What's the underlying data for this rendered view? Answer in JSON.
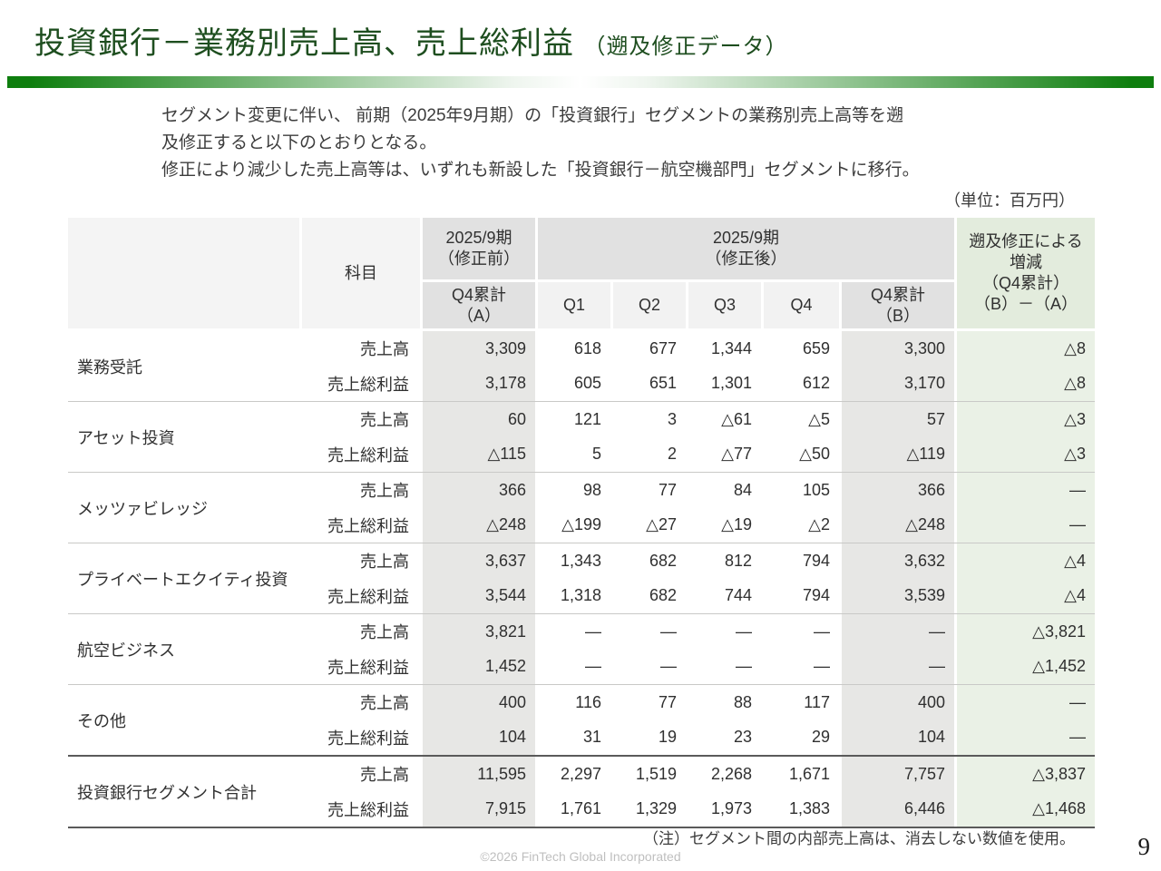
{
  "title": {
    "main": "投資銀行－業務別売上高、売上総利益",
    "sub": "（遡及修正データ）"
  },
  "intro": {
    "line1": "セグメント変更に伴い、 前期（2025年9月期）の「投資銀行」セグメントの業務別売上高等を遡",
    "line2": "及修正すると以下のとおりとなる。",
    "line3": "修正により減少した売上高等は、いずれも新設した「投資銀行－航空機部門」セグメントに移行。"
  },
  "unit_label": "（単位：百万円）",
  "table": {
    "header": {
      "item_col": "科目",
      "before": {
        "line1": "2025/9期",
        "line2": "（修正前）"
      },
      "after": {
        "line1": "2025/9期",
        "line2": "（修正後）"
      },
      "col_a": {
        "line1": "Q4累計",
        "line2": "（A）"
      },
      "q1": "Q1",
      "q2": "Q2",
      "q3": "Q3",
      "q4": "Q4",
      "col_b": {
        "line1": "Q4累計",
        "line2": "（B）"
      },
      "diff": {
        "line1": "遡及修正による",
        "line2": "増減",
        "line3": "（Q4累計）",
        "line4": "（B）－（A）"
      }
    },
    "groups": [
      {
        "name": "業務受託",
        "total": false,
        "rows": [
          {
            "item": "売上高",
            "values": [
              "3,309",
              "618",
              "677",
              "1,344",
              "659",
              "3,300",
              "△8"
            ]
          },
          {
            "item": "売上総利益",
            "values": [
              "3,178",
              "605",
              "651",
              "1,301",
              "612",
              "3,170",
              "△8"
            ]
          }
        ]
      },
      {
        "name": "アセット投資",
        "total": false,
        "rows": [
          {
            "item": "売上高",
            "values": [
              "60",
              "121",
              "3",
              "△61",
              "△5",
              "57",
              "△3"
            ]
          },
          {
            "item": "売上総利益",
            "values": [
              "△115",
              "5",
              "2",
              "△77",
              "△50",
              "△119",
              "△3"
            ]
          }
        ]
      },
      {
        "name": "メッツァビレッジ",
        "total": false,
        "rows": [
          {
            "item": "売上高",
            "values": [
              "366",
              "98",
              "77",
              "84",
              "105",
              "366",
              "―"
            ]
          },
          {
            "item": "売上総利益",
            "values": [
              "△248",
              "△199",
              "△27",
              "△19",
              "△2",
              "△248",
              "―"
            ]
          }
        ]
      },
      {
        "name": "プライベートエクイティ投資",
        "total": false,
        "rows": [
          {
            "item": "売上高",
            "values": [
              "3,637",
              "1,343",
              "682",
              "812",
              "794",
              "3,632",
              "△4"
            ]
          },
          {
            "item": "売上総利益",
            "values": [
              "3,544",
              "1,318",
              "682",
              "744",
              "794",
              "3,539",
              "△4"
            ]
          }
        ]
      },
      {
        "name": "航空ビジネス",
        "total": false,
        "rows": [
          {
            "item": "売上高",
            "values": [
              "3,821",
              "―",
              "―",
              "―",
              "―",
              "―",
              "△3,821"
            ]
          },
          {
            "item": "売上総利益",
            "values": [
              "1,452",
              "―",
              "―",
              "―",
              "―",
              "―",
              "△1,452"
            ]
          }
        ]
      },
      {
        "name": "その他",
        "total": false,
        "rows": [
          {
            "item": "売上高",
            "values": [
              "400",
              "116",
              "77",
              "88",
              "117",
              "400",
              "―"
            ]
          },
          {
            "item": "売上総利益",
            "values": [
              "104",
              "31",
              "19",
              "23",
              "29",
              "104",
              "―"
            ]
          }
        ]
      },
      {
        "name": "投資銀行セグメント合計",
        "total": true,
        "rows": [
          {
            "item": "売上高",
            "values": [
              "11,595",
              "2,297",
              "1,519",
              "2,268",
              "1,671",
              "7,757",
              "△3,837"
            ]
          },
          {
            "item": "売上総利益",
            "values": [
              "7,915",
              "1,761",
              "1,329",
              "1,973",
              "1,383",
              "6,446",
              "△1,468"
            ]
          }
        ]
      }
    ]
  },
  "footnote": "（注）セグメント間の内部売上高は、消去しない数値を使用。",
  "copyright": "©2026 FinTech Global Incorporated",
  "page_number": "9",
  "colors": {
    "title_green": "#1e4e1f",
    "bar_green": "#0e7e0e",
    "header_gray": "#e1e1e1",
    "header_light_gray": "#f4f4f4",
    "body_gray": "#e7e7e5",
    "diff_green_header": "#e3ecdd",
    "diff_green_body": "#eaf1e6"
  }
}
